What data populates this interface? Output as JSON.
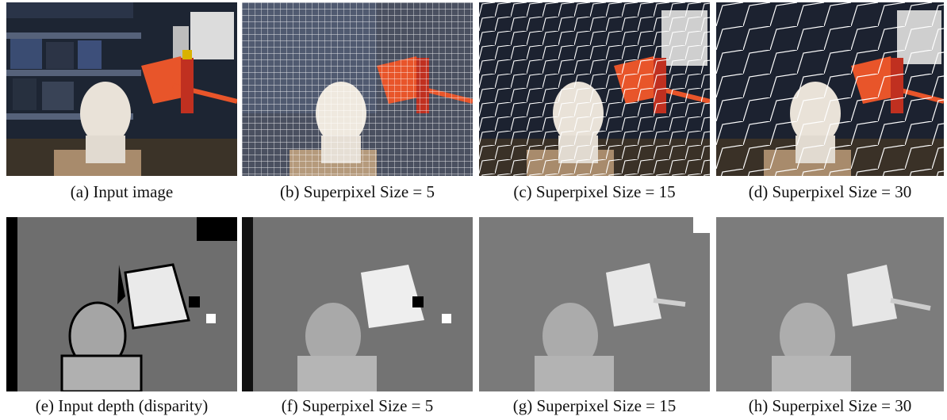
{
  "figure": {
    "captions": [
      "(a) Input image",
      "(b) Superpixel Size = 5",
      "(c) Superpixel Size = 15",
      "(d) Superpixel Size = 30",
      "(e) Input depth (disparity)",
      "(f) Superpixel Size = 5",
      "(g) Superpixel Size = 15",
      "(h) Superpixel Size = 30"
    ]
  },
  "colors": {
    "background": "#ffffff",
    "shelf": "#1b2230",
    "lamp_orange": "#e8552a",
    "head_white": "#e9e2d8",
    "box_tan": "#a88b6c",
    "superpixel_edge": "#ffffff",
    "depth_bg": "#6e6e6e"
  }
}
